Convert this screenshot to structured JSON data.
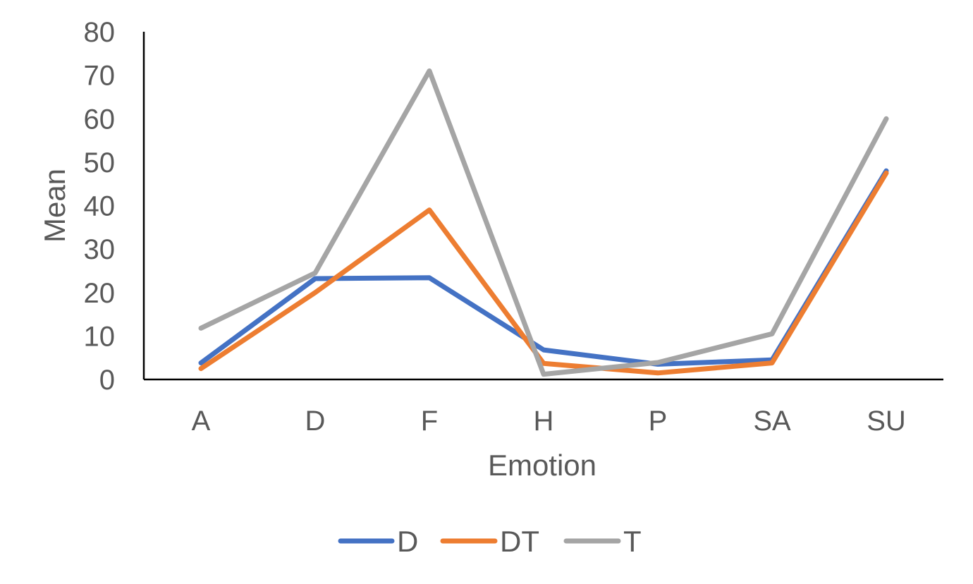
{
  "chart_data": {
    "type": "line",
    "title": "",
    "xlabel": "Emotion",
    "ylabel": "Mean",
    "categories": [
      "A",
      "D",
      "F",
      "H",
      "P",
      "SA",
      "SU"
    ],
    "ylim": [
      0,
      80
    ],
    "yticks": [
      0,
      10,
      20,
      30,
      40,
      50,
      60,
      70,
      80
    ],
    "grid": false,
    "legend_position": "bottom",
    "series": [
      {
        "name": "D",
        "color": "#4472C4",
        "values": [
          3.8,
          23.2,
          23.4,
          6.8,
          3.5,
          4.5,
          48.0
        ]
      },
      {
        "name": "DT",
        "color": "#ED7D31",
        "values": [
          2.5,
          20.0,
          39.0,
          3.7,
          1.5,
          3.8,
          47.5
        ]
      },
      {
        "name": "T",
        "color": "#A5A5A5",
        "values": [
          11.8,
          24.5,
          71.0,
          1.2,
          3.9,
          10.5,
          60.0
        ]
      }
    ]
  }
}
